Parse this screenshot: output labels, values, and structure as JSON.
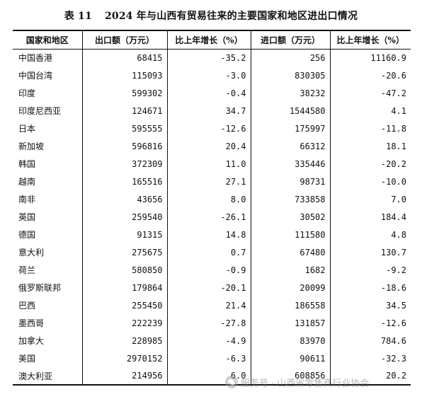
{
  "title": {
    "label": "表 11",
    "text": "2024 年与山西有贸易往来的主要国家和地区进出口情况"
  },
  "table": {
    "headers": [
      "国家和地区",
      "出口额（万元）",
      "比上年增长（%）",
      "进口额（万元）",
      "比上年增长（%）"
    ],
    "rows": [
      [
        "中国香港",
        "68415",
        "-35.2",
        "256",
        "11160.9"
      ],
      [
        "中国台湾",
        "115093",
        "-3.0",
        "830305",
        "-20.6"
      ],
      [
        "印度",
        "599302",
        "-0.4",
        "38232",
        "-47.2"
      ],
      [
        "印度尼西亚",
        "124671",
        "34.7",
        "1544580",
        "4.1"
      ],
      [
        "日本",
        "595555",
        "-12.6",
        "175997",
        "-11.8"
      ],
      [
        "新加坡",
        "596816",
        "20.4",
        "66312",
        "18.1"
      ],
      [
        "韩国",
        "372309",
        "11.0",
        "335446",
        "-20.2"
      ],
      [
        "越南",
        "165516",
        "27.1",
        "98731",
        "-10.0"
      ],
      [
        "南非",
        "43656",
        "8.0",
        "733858",
        "7.0"
      ],
      [
        "英国",
        "259540",
        "-26.1",
        "30502",
        "184.4"
      ],
      [
        "德国",
        "91315",
        "14.8",
        "111580",
        "4.8"
      ],
      [
        "意大利",
        "275675",
        "0.7",
        "67480",
        "130.7"
      ],
      [
        "荷兰",
        "580850",
        "-0.9",
        "1682",
        "-9.2"
      ],
      [
        "俄罗斯联邦",
        "179864",
        "-20.1",
        "20099",
        "-18.6"
      ],
      [
        "巴西",
        "255450",
        "21.4",
        "186558",
        "34.5"
      ],
      [
        "墨西哥",
        "222239",
        "-27.8",
        "131857",
        "-12.6"
      ],
      [
        "加拿大",
        "228985",
        "-4.9",
        "83970",
        "784.6"
      ],
      [
        "美国",
        "2970152",
        "-6.3",
        "90611",
        "-32.3"
      ],
      [
        "澳大利亚",
        "214956",
        "6.0",
        "608856",
        "20.2"
      ]
    ]
  },
  "watermark": {
    "icon": "wechat-icon",
    "text": "服务号 · 山西省零售商行业协会"
  }
}
